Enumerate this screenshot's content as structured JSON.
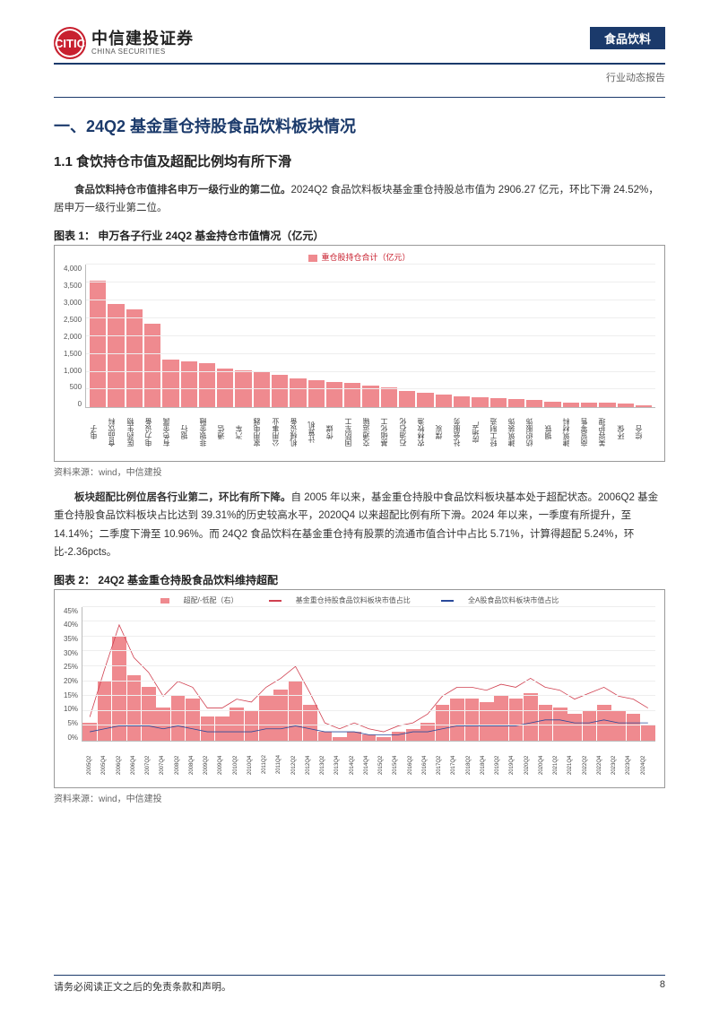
{
  "header": {
    "logo_cn": "中信建投证券",
    "logo_en": "CHINA SECURITIES",
    "logo_mark": "CITIC",
    "category": "食品饮料",
    "report_type": "行业动态报告"
  },
  "section_title": "一、24Q2 基金重仓持股食品饮料板块情况",
  "subsection_title": "1.1  食饮持仓市值及超配比例均有所下滑",
  "paragraph1_bold": "食品饮料持仓市值排名申万一级行业的第二位。",
  "paragraph1_rest": "2024Q2 食品饮料板块基金重仓持股总市值为 2906.27 亿元，环比下滑 24.52%，居申万一级行业第二位。",
  "chart1": {
    "title": "图表 1：  申万各子行业 24Q2 基金持仓市值情况（亿元）",
    "legend": "重仓股持仓合计（亿元）",
    "type": "bar",
    "bar_color": "#ef8a8f",
    "grid_color": "#eeeeee",
    "axis_color": "#bbbbbb",
    "font_size": 8,
    "ylim": [
      0,
      4000
    ],
    "ytick_step": 500,
    "yticks": [
      "0",
      "500",
      "1,000",
      "1,500",
      "2,000",
      "2,500",
      "3,000",
      "3,500",
      "4,000"
    ],
    "categories": [
      "电子",
      "食品饮料",
      "医药生物",
      "电力设备",
      "有色金属",
      "银行",
      "非银金融",
      "通信",
      "汽车",
      "家用电器",
      "公用事业",
      "机械设备",
      "计算机",
      "传媒",
      "国防军工",
      "交通运输",
      "基础化工",
      "石油石化",
      "农林牧渔",
      "煤炭",
      "社会服务",
      "房地产",
      "轻工制造",
      "建筑装饰",
      "纺织服饰",
      "钢铁",
      "建筑材料",
      "商贸零售",
      "美容护理",
      "环保",
      "综合"
    ],
    "values": [
      3550,
      2900,
      2750,
      2350,
      1350,
      1300,
      1250,
      1100,
      1050,
      1000,
      900,
      800,
      750,
      700,
      680,
      600,
      550,
      450,
      400,
      350,
      300,
      280,
      260,
      240,
      220,
      150,
      140,
      130,
      120,
      110,
      60
    ],
    "source": "资料来源：wind，中信建投"
  },
  "paragraph2_bold": "板块超配比例位居各行业第二，环比有所下降。",
  "paragraph2_rest": "自 2005 年以来，基金重仓持股中食品饮料板块基本处于超配状态。2006Q2 基金重仓持股食品饮料板块占比达到 39.31%的历史较高水平，2020Q4 以来超配比例有所下滑。2024 年以来，一季度有所提升，至 14.14%；二季度下滑至 10.96%。而 24Q2 食品饮料在基金重仓持有股票的流通市值合计中占比 5.71%，计算得超配 5.24%，环比-2.36pcts。",
  "chart2": {
    "title": "图表 2：  24Q2 基金重仓持股食品饮料维持超配",
    "type": "combo",
    "legend_bar": "超配/-低配（右）",
    "legend_line_red": "基金重仓持股食品饮料板块市值占比",
    "legend_line_blue": "全A股食品饮料板块市值占比",
    "bar_color": "#ef8a8f",
    "line_red_color": "#d04050",
    "line_blue_color": "#2a4a9b",
    "grid_color": "#eeeeee",
    "axis_color": "#bbbbbb",
    "font_size": 8,
    "ylim": [
      0,
      45
    ],
    "ytick_step": 5,
    "yticks": [
      "0%",
      "5%",
      "10%",
      "15%",
      "20%",
      "25%",
      "30%",
      "35%",
      "40%",
      "45%"
    ],
    "periods": [
      "2005Q2",
      "2005Q4",
      "2006Q2",
      "2006Q4",
      "2007Q2",
      "2007Q4",
      "2008Q2",
      "2008Q4",
      "2009Q2",
      "2009Q4",
      "2010Q2",
      "2010Q4",
      "2011Q2",
      "2011Q4",
      "2012Q2",
      "2012Q4",
      "2013Q2",
      "2013Q4",
      "2014Q2",
      "2014Q4",
      "2015Q2",
      "2015Q4",
      "2016Q2",
      "2016Q4",
      "2017Q2",
      "2017Q4",
      "2018Q2",
      "2018Q4",
      "2019Q2",
      "2019Q4",
      "2020Q2",
      "2020Q4",
      "2021Q2",
      "2021Q4",
      "2022Q2",
      "2022Q4",
      "2023Q2",
      "2023Q4",
      "2024Q2"
    ],
    "bar_values": [
      6,
      20,
      35,
      22,
      18,
      11,
      15,
      14,
      8,
      8,
      11,
      10,
      15,
      17,
      20,
      12,
      3,
      1,
      3,
      2,
      1,
      3,
      4,
      6,
      12,
      14,
      14,
      13,
      15,
      14,
      16,
      12,
      11,
      9,
      10,
      12,
      10,
      9,
      5
    ],
    "line_red_values": [
      8,
      24,
      39,
      28,
      23,
      15,
      20,
      18,
      11,
      11,
      14,
      13,
      18,
      21,
      25,
      16,
      6,
      4,
      6,
      4,
      3,
      5,
      6,
      9,
      15,
      18,
      18,
      17,
      19,
      18,
      21,
      18,
      17,
      14,
      16,
      18,
      15,
      14,
      11
    ],
    "line_blue_values": [
      3,
      4,
      5,
      5,
      5,
      4,
      5,
      4,
      3,
      3,
      3,
      3,
      4,
      4,
      5,
      4,
      3,
      3,
      3,
      2,
      2,
      2,
      3,
      3,
      4,
      5,
      5,
      5,
      5,
      5,
      6,
      7,
      7,
      6,
      6,
      7,
      6,
      6,
      6
    ],
    "source": "资料来源：wind，中信建投"
  },
  "footer": {
    "disclaimer": "请务必阅读正文之后的免责条款和声明。",
    "page": "8"
  }
}
